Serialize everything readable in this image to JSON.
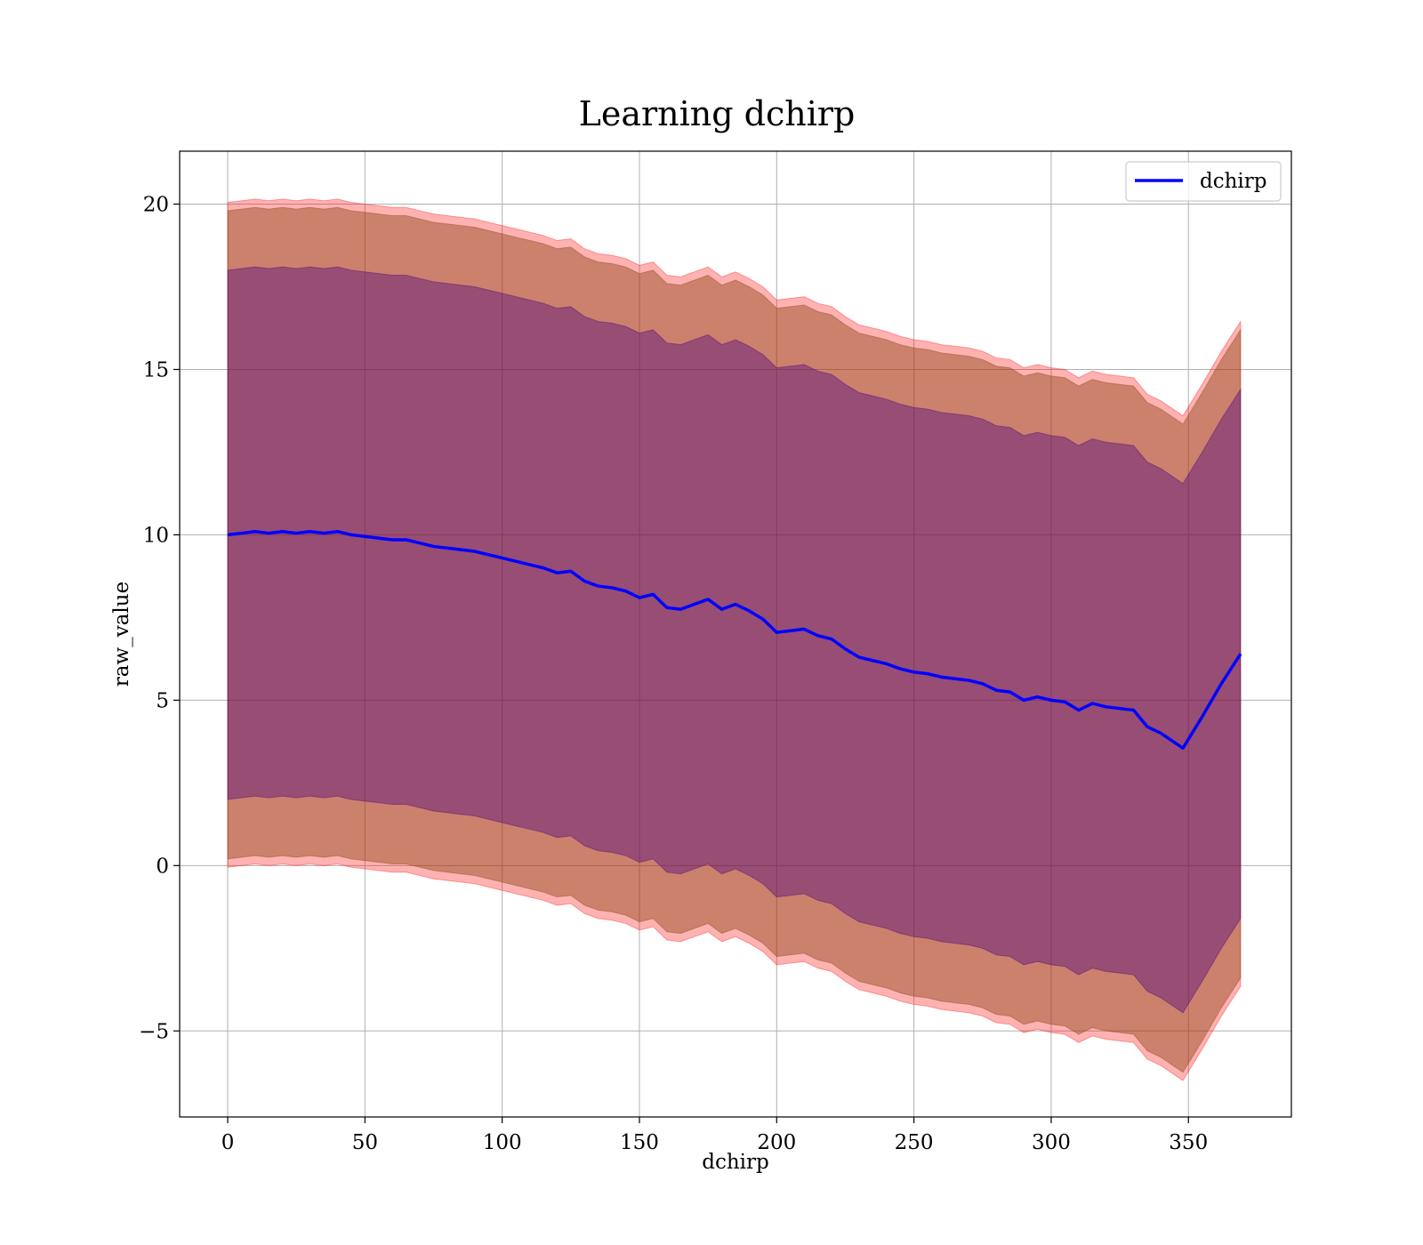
{
  "chart_data": {
    "type": "line",
    "title": "Learning dchirp",
    "xlabel": "dchirp",
    "ylabel": "raw_value",
    "xlim": [
      -17.5,
      387.5
    ],
    "ylim": [
      -7.6,
      21.6
    ],
    "x_ticks": [
      0,
      50,
      100,
      150,
      200,
      250,
      300,
      350
    ],
    "y_ticks": [
      -5,
      0,
      5,
      10,
      15,
      20
    ],
    "x_tick_labels": [
      "0",
      "50",
      "100",
      "150",
      "200",
      "250",
      "300",
      "350"
    ],
    "y_tick_labels": [
      "−5",
      "0",
      "5",
      "10",
      "15",
      "20"
    ],
    "grid": true,
    "legend": {
      "position": "top-right",
      "entries": [
        "dchirp"
      ]
    },
    "colors": {
      "line": "#0000ff",
      "outer_band": "#ff0000",
      "middle_band": "#8b4513",
      "inner_band": "#4b0082",
      "grid": "#b0b0b0"
    },
    "series": [
      {
        "name": "dchirp",
        "x": [
          0,
          5,
          10,
          15,
          20,
          25,
          30,
          35,
          40,
          45,
          50,
          55,
          60,
          65,
          70,
          75,
          80,
          85,
          90,
          95,
          100,
          105,
          110,
          115,
          120,
          125,
          130,
          135,
          140,
          145,
          150,
          155,
          160,
          165,
          170,
          175,
          180,
          185,
          190,
          195,
          200,
          205,
          210,
          215,
          220,
          225,
          230,
          235,
          240,
          245,
          250,
          255,
          260,
          265,
          270,
          275,
          280,
          285,
          290,
          295,
          300,
          305,
          310,
          315,
          320,
          325,
          330,
          335,
          340,
          348,
          355,
          362,
          369
        ],
        "y": [
          10.0,
          10.05,
          10.1,
          10.05,
          10.1,
          10.05,
          10.1,
          10.05,
          10.1,
          10.0,
          9.95,
          9.9,
          9.85,
          9.85,
          9.75,
          9.65,
          9.6,
          9.55,
          9.5,
          9.4,
          9.3,
          9.2,
          9.1,
          9.0,
          8.85,
          8.9,
          8.6,
          8.45,
          8.4,
          8.3,
          8.1,
          8.2,
          7.8,
          7.75,
          7.9,
          8.05,
          7.75,
          7.9,
          7.7,
          7.45,
          7.05,
          7.1,
          7.15,
          6.95,
          6.85,
          6.55,
          6.3,
          6.2,
          6.1,
          5.95,
          5.85,
          5.8,
          5.7,
          5.65,
          5.6,
          5.5,
          5.3,
          5.25,
          5.0,
          5.1,
          5.0,
          4.95,
          4.7,
          4.9,
          4.8,
          4.75,
          4.7,
          4.2,
          4.0,
          3.55,
          4.5,
          5.5,
          6.4
        ],
        "band_inner_half_width": [
          8.0,
          8.0,
          8.0,
          8.0,
          8.0,
          8.0,
          8.0,
          8.0,
          8.0,
          8.0,
          8.0,
          8.0,
          8.0,
          8.0,
          8.0,
          8.0,
          8.0,
          8.0,
          8.0,
          8.0,
          8.0,
          8.0,
          8.0,
          8.0,
          8.0,
          8.0,
          8.0,
          8.0,
          8.0,
          8.0,
          8.0,
          8.0,
          8.0,
          8.0,
          8.0,
          8.0,
          8.0,
          8.0,
          8.0,
          8.0,
          8.0,
          8.0,
          8.0,
          8.0,
          8.0,
          8.0,
          8.0,
          8.0,
          8.0,
          8.0,
          8.0,
          8.0,
          8.0,
          8.0,
          8.0,
          8.0,
          8.0,
          8.0,
          8.0,
          8.0,
          8.0,
          8.0,
          8.0,
          8.0,
          8.0,
          8.0,
          8.0,
          8.0,
          8.0,
          8.0,
          8.0,
          8.0,
          8.0
        ],
        "band_middle_half_width": [
          9.8,
          9.8,
          9.8,
          9.8,
          9.8,
          9.8,
          9.8,
          9.8,
          9.8,
          9.8,
          9.8,
          9.8,
          9.8,
          9.8,
          9.8,
          9.8,
          9.8,
          9.8,
          9.8,
          9.8,
          9.8,
          9.8,
          9.8,
          9.8,
          9.8,
          9.8,
          9.8,
          9.8,
          9.8,
          9.8,
          9.8,
          9.8,
          9.8,
          9.8,
          9.8,
          9.8,
          9.8,
          9.8,
          9.8,
          9.8,
          9.8,
          9.8,
          9.8,
          9.8,
          9.8,
          9.8,
          9.8,
          9.8,
          9.8,
          9.8,
          9.8,
          9.8,
          9.8,
          9.8,
          9.8,
          9.8,
          9.8,
          9.8,
          9.8,
          9.8,
          9.8,
          9.8,
          9.8,
          9.8,
          9.8,
          9.8,
          9.8,
          9.8,
          9.8,
          9.8,
          9.8,
          9.8,
          9.8
        ],
        "band_outer_half_width": [
          10.05,
          10.05,
          10.05,
          10.05,
          10.05,
          10.05,
          10.05,
          10.05,
          10.05,
          10.05,
          10.05,
          10.05,
          10.05,
          10.05,
          10.05,
          10.05,
          10.05,
          10.05,
          10.05,
          10.05,
          10.05,
          10.05,
          10.05,
          10.05,
          10.05,
          10.05,
          10.05,
          10.05,
          10.05,
          10.05,
          10.05,
          10.05,
          10.05,
          10.05,
          10.05,
          10.05,
          10.05,
          10.05,
          10.05,
          10.05,
          10.05,
          10.05,
          10.05,
          10.05,
          10.05,
          10.05,
          10.05,
          10.05,
          10.05,
          10.05,
          10.05,
          10.05,
          10.05,
          10.05,
          10.05,
          10.05,
          10.05,
          10.05,
          10.05,
          10.05,
          10.05,
          10.05,
          10.05,
          10.05,
          10.05,
          10.05,
          10.05,
          10.05,
          10.05,
          10.05,
          10.05,
          10.05,
          10.05
        ]
      }
    ]
  }
}
